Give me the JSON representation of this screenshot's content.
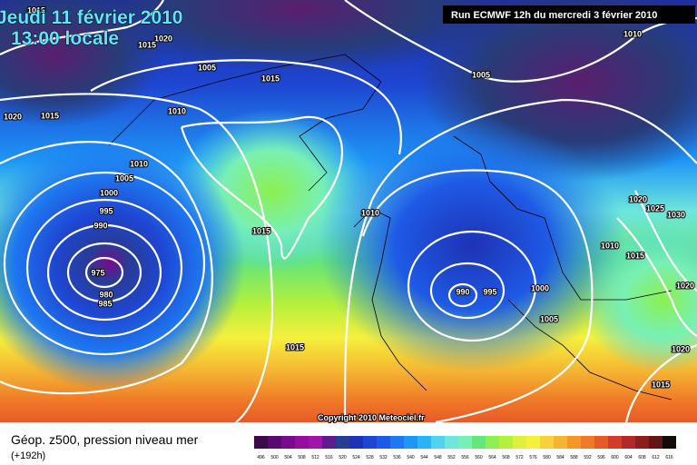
{
  "header": {
    "date": "Jeudi 11 février 2010",
    "time": "13:00 locale",
    "run": "Run ECMWF 12h du mercredi 3 février 2010"
  },
  "isobar_labels": [
    "1015",
    "1020",
    "1015",
    "1005",
    "1015",
    "1020",
    "1015",
    "1010",
    "1010",
    "1005",
    "1000",
    "995",
    "990",
    "975",
    "980",
    "985",
    "1015",
    "1015",
    "1010",
    "1010",
    "1005",
    "990",
    "995",
    "1000",
    "1005",
    "1020",
    "1025",
    "1030",
    "1010",
    "1015",
    "1020",
    "1020",
    "1015"
  ],
  "copyright": "Copyright 2010 Meteociel.fr",
  "legend": {
    "title": "Géop. z500, pression niveau mer",
    "lead": "(+192h)",
    "labels": [
      496,
      500,
      504,
      508,
      512,
      516,
      520,
      524,
      528,
      532,
      536,
      540,
      544,
      548,
      552,
      556,
      560,
      564,
      568,
      572,
      576,
      580,
      584,
      588,
      592,
      596,
      600,
      604,
      608,
      612,
      616
    ],
    "colors": [
      "#3c0a46",
      "#5a0a6e",
      "#7a0a8c",
      "#960ea0",
      "#a014aa",
      "#5a1e8c",
      "#283c96",
      "#1e32b4",
      "#1e46d2",
      "#1e5ae6",
      "#1e78f0",
      "#1e96f5",
      "#28b4f5",
      "#50d2f0",
      "#6ee6dc",
      "#78f0b4",
      "#64e678",
      "#8cf050",
      "#b4f03c",
      "#dcf03c",
      "#f5f03c",
      "#f5d23c",
      "#f5b432",
      "#f59628",
      "#f07828",
      "#e65a28",
      "#d23c28",
      "#b42828",
      "#8c1e1e",
      "#641414",
      "#140a0a"
    ]
  }
}
